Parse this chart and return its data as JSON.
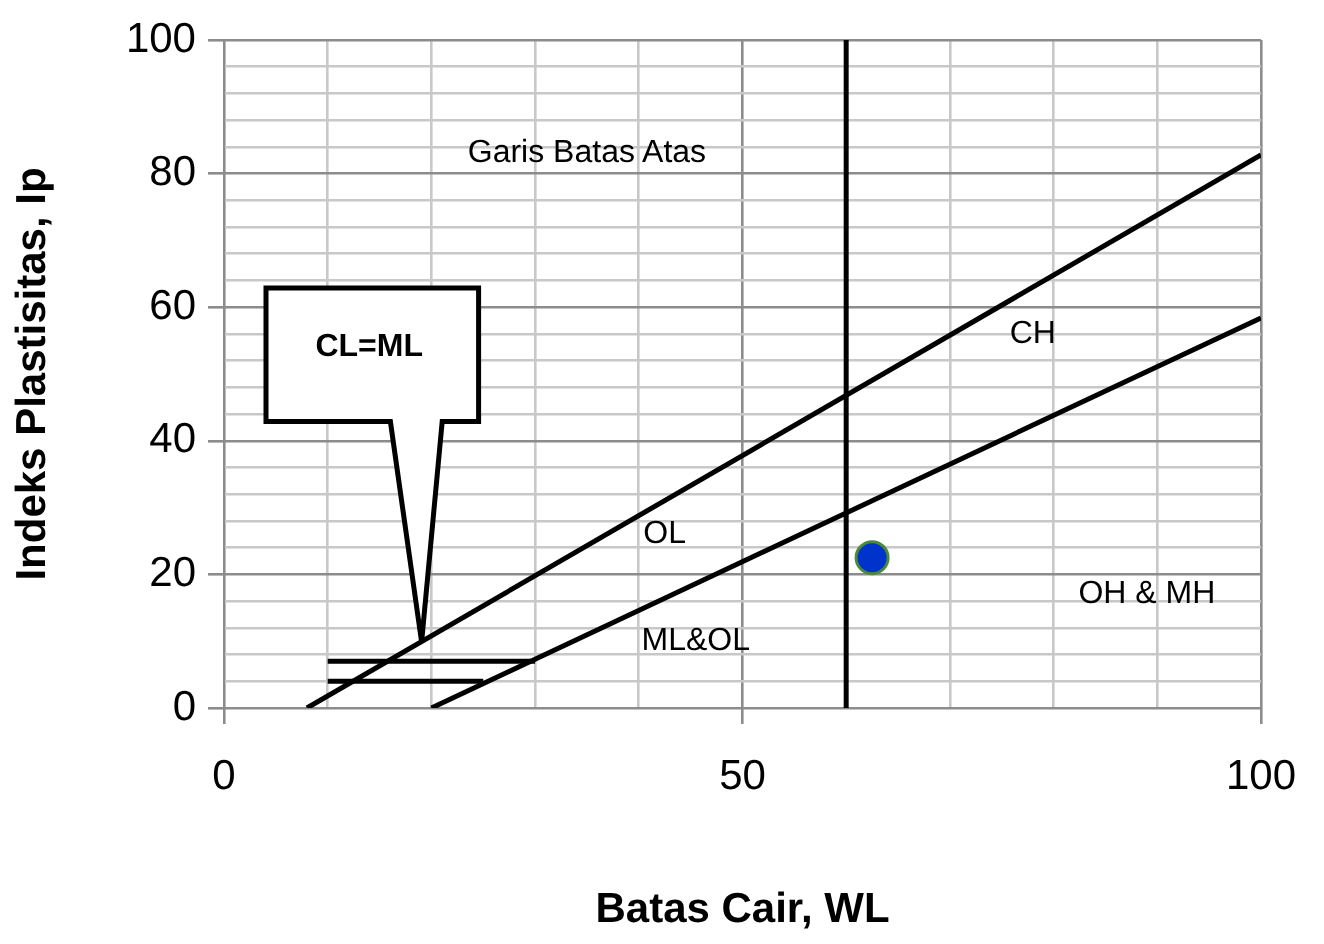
{
  "chart_data": {
    "type": "line",
    "xlabel": "Batas Cair, WL",
    "ylabel": "Indeks Plastisitas, Ip",
    "xlim": [
      0,
      100
    ],
    "ylim": [
      0,
      100
    ],
    "xticks": [
      0,
      {
        "value": 10,
        "label": null
      },
      {
        "value": 20,
        "label": null
      },
      {
        "value": 30,
        "label": null
      },
      {
        "value": 40,
        "label": null
      },
      50,
      {
        "value": 60,
        "label": null
      },
      {
        "value": 70,
        "label": null
      },
      {
        "value": 80,
        "label": null
      },
      {
        "value": 90,
        "label": null
      },
      100
    ],
    "yticks": [
      0,
      {
        "value": 4,
        "label": null
      },
      {
        "value": 8,
        "label": null
      },
      {
        "value": 12,
        "label": null
      },
      {
        "value": 16,
        "label": null
      },
      20,
      {
        "value": 24,
        "label": null
      },
      {
        "value": 28,
        "label": null
      },
      {
        "value": 32,
        "label": null
      },
      {
        "value": 36,
        "label": null
      },
      40,
      {
        "value": 44,
        "label": null
      },
      {
        "value": 48,
        "label": null
      },
      {
        "value": 52,
        "label": null
      },
      {
        "value": 56,
        "label": null
      },
      60,
      {
        "value": 64,
        "label": null
      },
      {
        "value": 68,
        "label": null
      },
      {
        "value": 72,
        "label": null
      },
      {
        "value": 76,
        "label": null
      },
      80,
      {
        "value": 84,
        "label": null
      },
      {
        "value": 88,
        "label": null
      },
      {
        "value": 92,
        "label": null
      },
      {
        "value": 96,
        "label": null
      },
      100
    ],
    "grid": true,
    "legend": false,
    "marker": "none",
    "line_style": "solid",
    "series": [
      {
        "color": "#000000",
        "x": [
          8,
          100
        ],
        "values": [
          0,
          82.8
        ]
      },
      {
        "color": "#000000",
        "x": [
          20,
          100
        ],
        "values": [
          0,
          58.4
        ]
      },
      {
        "color": "#000000",
        "x": [
          10,
          30
        ],
        "values": [
          7,
          7
        ]
      },
      {
        "color": "#000000",
        "x": [
          10,
          25
        ],
        "values": [
          4,
          4
        ]
      },
      {
        "type": "scatter",
        "color": "#0033cc",
        "marker": "circle",
        "x": [
          62.5
        ],
        "values": [
          22.5
        ]
      }
    ],
    "ref_lines": [
      {
        "axis": "x",
        "value": 60,
        "color": "#000000"
      }
    ],
    "annotations": [
      "Garis Batas Atas",
      "CL=ML",
      "CH",
      "OL",
      "ML&OL",
      "OH & MH"
    ]
  }
}
